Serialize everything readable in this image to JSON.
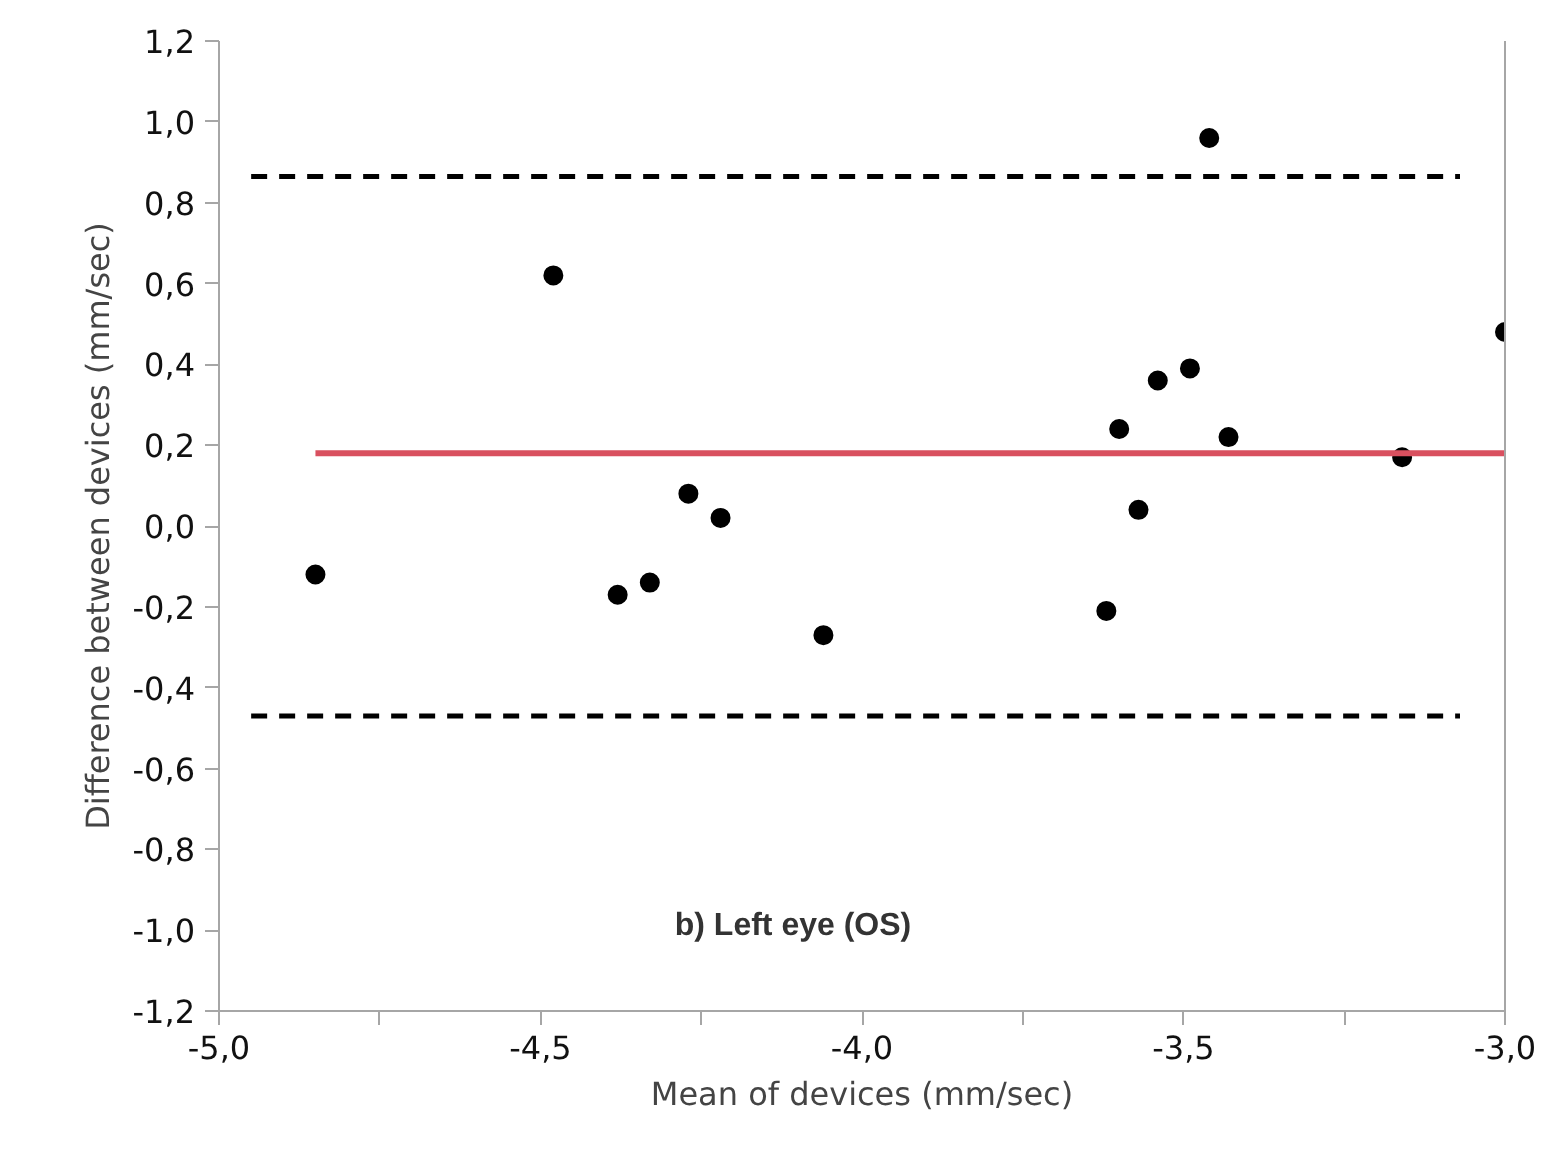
{
  "chart_data": {
    "type": "scatter",
    "xlabel": "Mean of devices (mm/sec)",
    "ylabel": "Difference between devices (mm/sec)",
    "annotations": [
      "b) Left eye (OS)"
    ],
    "xlim": [
      -5.0,
      -3.0
    ],
    "xticks": [
      {
        "value": -5.0,
        "label": "-5,0"
      },
      {
        "value": -4.75,
        "label": null
      },
      {
        "value": -4.5,
        "label": "-4,5"
      },
      {
        "value": -4.25,
        "label": null
      },
      {
        "value": -4.0,
        "label": "-4,0"
      },
      {
        "value": -3.75,
        "label": null
      },
      {
        "value": -3.5,
        "label": "-3,5"
      },
      {
        "value": -3.25,
        "label": null
      },
      {
        "value": -3.0,
        "label": "-3,0"
      }
    ],
    "ylim": [
      -1.2,
      1.2
    ],
    "yticks": [
      {
        "value": -1.2,
        "label": "-1,2"
      },
      {
        "value": -1.0,
        "label": "-1,0"
      },
      {
        "value": -0.8,
        "label": "-0,8"
      },
      {
        "value": -0.6,
        "label": "-0,6"
      },
      {
        "value": -0.4,
        "label": "-0,4"
      },
      {
        "value": -0.2,
        "label": "-0,2"
      },
      {
        "value": 0.0,
        "label": "0,0"
      },
      {
        "value": 0.2,
        "label": "0,2"
      },
      {
        "value": 0.4,
        "label": "0,4"
      },
      {
        "value": 0.6,
        "label": "0,6"
      },
      {
        "value": 0.8,
        "label": "0,8"
      },
      {
        "value": 1.0,
        "label": "1,0"
      },
      {
        "value": 1.2,
        "label": "1,2"
      }
    ],
    "grid": false,
    "series": [
      {
        "marker": "circle",
        "color": "#000000",
        "x": [
          -4.85,
          -4.48,
          -4.38,
          -4.33,
          -4.27,
          -4.22,
          -4.06,
          -3.62,
          -3.6,
          -3.57,
          -3.54,
          -3.49,
          -3.46,
          -3.43,
          -3.16,
          -3.0
        ],
        "values": [
          -0.12,
          0.62,
          -0.17,
          -0.14,
          0.08,
          0.02,
          -0.27,
          -0.21,
          0.24,
          0.04,
          0.36,
          0.39,
          0.96,
          0.22,
          0.17,
          0.48
        ]
      },
      {
        "type": "line",
        "color": "#000000",
        "line_style": "dashed",
        "x": [
          -4.95,
          -3.07
        ],
        "values": [
          0.865,
          0.865
        ]
      },
      {
        "type": "line",
        "color": "#000000",
        "line_style": "dashed",
        "x": [
          -4.95,
          -3.07
        ],
        "values": [
          -0.47,
          -0.47
        ]
      },
      {
        "type": "line",
        "color": "#d9505f",
        "line_style": "solid",
        "x": [
          -4.85,
          -3.0
        ],
        "values": [
          0.18,
          0.18
        ]
      }
    ]
  }
}
